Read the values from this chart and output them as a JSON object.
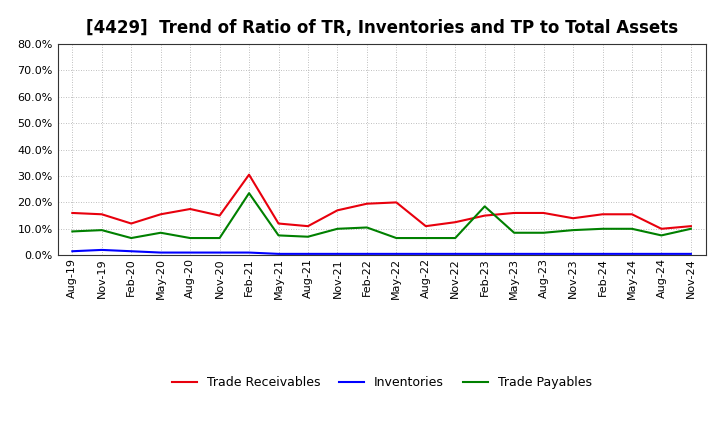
{
  "title": "[4429]  Trend of Ratio of TR, Inventories and TP to Total Assets",
  "x_labels": [
    "Aug-19",
    "Nov-19",
    "Feb-20",
    "May-20",
    "Aug-20",
    "Nov-20",
    "Feb-21",
    "May-21",
    "Aug-21",
    "Nov-21",
    "Feb-22",
    "May-22",
    "Aug-22",
    "Nov-22",
    "Feb-23",
    "May-23",
    "Aug-23",
    "Nov-23",
    "Feb-24",
    "May-24",
    "Aug-24",
    "Nov-24"
  ],
  "trade_receivables": [
    0.16,
    0.155,
    0.12,
    0.155,
    0.175,
    0.15,
    0.305,
    0.12,
    0.11,
    0.17,
    0.195,
    0.2,
    0.11,
    0.125,
    0.15,
    0.16,
    0.16,
    0.14,
    0.155,
    0.155,
    0.1,
    0.11
  ],
  "inventories": [
    0.015,
    0.02,
    0.015,
    0.01,
    0.01,
    0.01,
    0.01,
    0.005,
    0.005,
    0.005,
    0.005,
    0.005,
    0.005,
    0.005,
    0.005,
    0.005,
    0.005,
    0.005,
    0.005,
    0.005,
    0.005,
    0.005
  ],
  "trade_payables": [
    0.09,
    0.095,
    0.065,
    0.085,
    0.065,
    0.065,
    0.235,
    0.075,
    0.07,
    0.1,
    0.105,
    0.065,
    0.065,
    0.065,
    0.185,
    0.085,
    0.085,
    0.095,
    0.1,
    0.1,
    0.075,
    0.1
  ],
  "tr_color": "#e8000d",
  "inv_color": "#0000ff",
  "tp_color": "#008000",
  "ylim": [
    0.0,
    0.8
  ],
  "yticks": [
    0.0,
    0.1,
    0.2,
    0.3,
    0.4,
    0.5,
    0.6,
    0.7,
    0.8
  ],
  "legend_labels": [
    "Trade Receivables",
    "Inventories",
    "Trade Payables"
  ],
  "background_color": "#ffffff",
  "grid_color": "#aaaaaa",
  "title_fontsize": 12,
  "tick_fontsize": 8,
  "legend_fontsize": 9
}
